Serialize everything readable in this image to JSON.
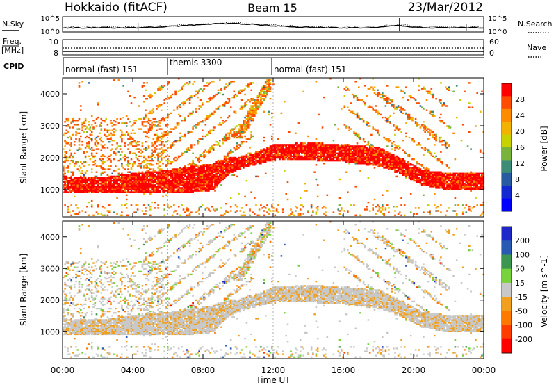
{
  "header": {
    "station": "Hokkaido (fitACF)",
    "beam": "Beam 15",
    "date": "23/Mar/2012"
  },
  "noise_panel": {
    "left_label": "N.Sky",
    "right_label": "N.Search",
    "ticks_left": [
      "10^5",
      "10^0"
    ],
    "ticks_right": [
      "10^5",
      "10^0"
    ]
  },
  "freq_panel": {
    "left_label_1": "Freq.",
    "left_label_2": "[MHz]",
    "right_label": "Nave",
    "ticks_left": [
      "10",
      "8"
    ],
    "ticks_right": [
      "60",
      "0"
    ]
  },
  "cpid_panel": {
    "label": "CPID",
    "modes": [
      "normal (fast) 151",
      "themis 3300",
      "normal (fast) 151"
    ]
  },
  "x_axis": {
    "ticks": [
      "00:00",
      "04:00",
      "08:00",
      "12:00",
      "16:00",
      "20:00",
      "00:00"
    ],
    "title": "Time UT"
  },
  "chart_data": [
    {
      "type": "heatmap",
      "title": "Power",
      "ylabel": "Slant Range [km]",
      "xlabel": "Time UT",
      "xlim": [
        0,
        24
      ],
      "ylim": [
        150,
        4500
      ],
      "y_ticks": [
        1000,
        2000,
        3000,
        4000
      ],
      "colorbar": {
        "label": "Power [dB]",
        "ticks": [
          "28",
          "24",
          "20",
          "16",
          "12",
          "8",
          "4"
        ],
        "colors": [
          "#ff0000",
          "#ff4c00",
          "#ff8c00",
          "#f0b400",
          "#c8d200",
          "#78b43c",
          "#3c8c78",
          "#285aa0",
          "#1428d2",
          "#0000ff"
        ]
      },
      "band_points": [
        {
          "t": 0,
          "lo": 900,
          "hi": 1400
        },
        {
          "t": 2,
          "lo": 880,
          "hi": 1350
        },
        {
          "t": 4,
          "lo": 860,
          "hi": 1500
        },
        {
          "t": 6,
          "lo": 900,
          "hi": 1600
        },
        {
          "t": 7,
          "lo": 880,
          "hi": 1700
        },
        {
          "t": 8.5,
          "lo": 950,
          "hi": 1800
        },
        {
          "t": 9.5,
          "lo": 1500,
          "hi": 2000
        },
        {
          "t": 10.5,
          "lo": 1700,
          "hi": 2050
        },
        {
          "t": 12,
          "lo": 1900,
          "hi": 2400
        },
        {
          "t": 14,
          "lo": 1900,
          "hi": 2450
        },
        {
          "t": 16,
          "lo": 1850,
          "hi": 2400
        },
        {
          "t": 18,
          "lo": 1700,
          "hi": 2300
        },
        {
          "t": 19.3,
          "lo": 1450,
          "hi": 1950
        },
        {
          "t": 20.5,
          "lo": 1100,
          "hi": 1600
        },
        {
          "t": 22,
          "lo": 950,
          "hi": 1500
        },
        {
          "t": 24,
          "lo": 950,
          "hi": 1500
        }
      ]
    },
    {
      "type": "heatmap",
      "title": "Velocity",
      "ylabel": "Slant Range [km]",
      "xlabel": "Time UT",
      "xlim": [
        0,
        24
      ],
      "ylim": [
        150,
        4500
      ],
      "y_ticks": [
        1000,
        2000,
        3000,
        4000
      ],
      "colorbar": {
        "label": "Velocity [m s^-1]",
        "ticks": [
          "200",
          "100",
          "50",
          "15",
          "-15",
          "-50",
          "-100",
          "-200"
        ],
        "colors": [
          "#1e28c8",
          "#285ab4",
          "#3c9650",
          "#78d23c",
          "#c8c8c8",
          "#f0a01e",
          "#ff7800",
          "#ff3c00",
          "#ff0000"
        ]
      }
    }
  ]
}
